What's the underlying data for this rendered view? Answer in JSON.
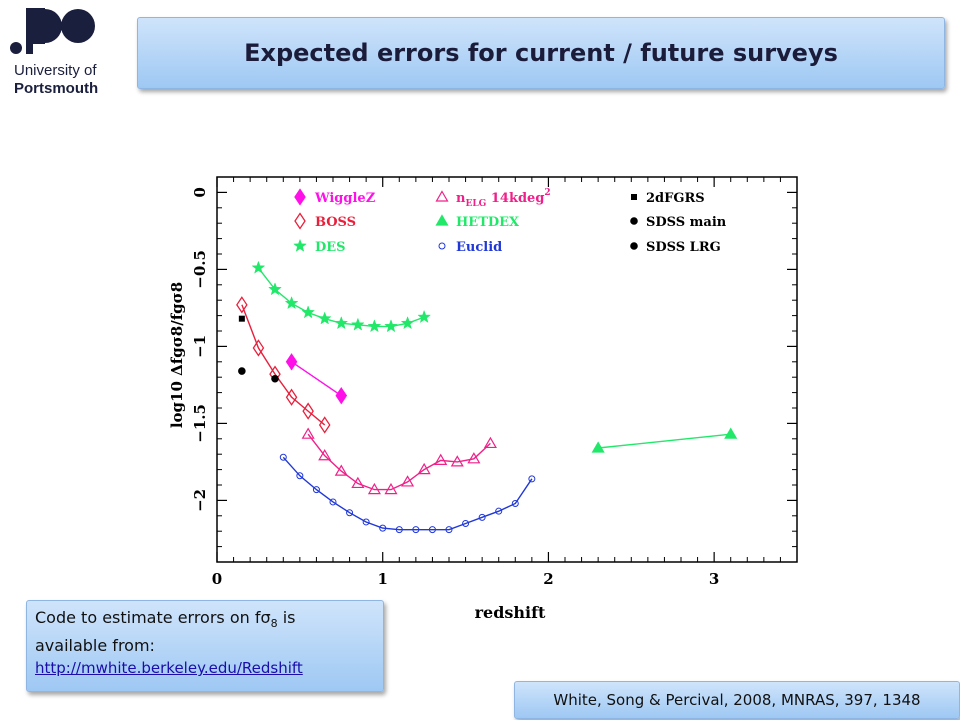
{
  "header": {
    "title": "Expected errors for current / future surveys",
    "logo_line1": "University of",
    "logo_line2": "Portsmouth"
  },
  "note": {
    "line1": "Code to estimate errors on fσ",
    "subscript": "8",
    "line1_end": " is",
    "line2": "available from:",
    "link": "http://mwhite.berkeley.edu/Redshift"
  },
  "citation": "White, Song & Percival, 2008, MNRAS, 397, 1348",
  "chart_data": {
    "type": "scatter",
    "xlabel": "redshift",
    "ylabel": "log10 Δfgσ8/fgσ8",
    "xlim": [
      0,
      3.5
    ],
    "ylim": [
      -2.4,
      0.1
    ],
    "xticks": [
      0,
      1,
      2,
      3
    ],
    "yticks": [
      0,
      -0.5,
      -1,
      -1.5,
      -2
    ],
    "xtick_labels": [
      "0",
      "1",
      "2",
      "3"
    ],
    "ytick_labels": [
      "0",
      "−0.5",
      "−1",
      "−1.5",
      "−2"
    ],
    "legend": {
      "placement": "top",
      "wigglez": "WiggleZ",
      "boss": "BOSS",
      "des": "DES",
      "nelg_pre": "n",
      "nelg_sub": "ELG",
      "nelg_post": " 14kdeg",
      "nelg_sup": "2",
      "hetdex": "HETDEX",
      "euclid": "Euclid",
      "twodf": "2dFGRS",
      "sdss_main": "SDSS main",
      "sdss_lrg": "SDSS LRG"
    },
    "series": [
      {
        "key": "wigglez",
        "name": "WiggleZ",
        "color": "#ff10e8",
        "marker": "diamond-filled",
        "line": true,
        "x": [
          0.45,
          0.75
        ],
        "y": [
          -1.1,
          -1.32
        ]
      },
      {
        "key": "boss",
        "name": "BOSS",
        "color": "#e8203c",
        "marker": "diamond-open",
        "line": true,
        "x": [
          0.15,
          0.25,
          0.35,
          0.45,
          0.55,
          0.65
        ],
        "y": [
          -0.73,
          -1.01,
          -1.18,
          -1.33,
          -1.42,
          -1.51
        ]
      },
      {
        "key": "des",
        "name": "DES",
        "color": "#22e86a",
        "marker": "star",
        "line": true,
        "x": [
          0.25,
          0.35,
          0.45,
          0.55,
          0.65,
          0.75,
          0.85,
          0.95,
          1.05,
          1.15,
          1.25
        ],
        "y": [
          -0.49,
          -0.63,
          -0.72,
          -0.78,
          -0.82,
          -0.85,
          -0.86,
          -0.87,
          -0.87,
          -0.85,
          -0.81
        ]
      },
      {
        "key": "nelg",
        "name": "nELG 14kdeg2",
        "color": "#f0208a",
        "marker": "triangle-open",
        "line": true,
        "x": [
          0.55,
          0.65,
          0.75,
          0.85,
          0.95,
          1.05,
          1.15,
          1.25,
          1.35,
          1.45,
          1.55,
          1.65
        ],
        "y": [
          -1.57,
          -1.71,
          -1.81,
          -1.89,
          -1.93,
          -1.93,
          -1.88,
          -1.8,
          -1.74,
          -1.75,
          -1.73,
          -1.63
        ]
      },
      {
        "key": "hetdex",
        "name": "HETDEX",
        "color": "#22e86a",
        "marker": "triangle-filled",
        "line": true,
        "x": [
          2.3,
          3.1
        ],
        "y": [
          -1.66,
          -1.57
        ]
      },
      {
        "key": "euclid",
        "name": "Euclid",
        "color": "#2038d8",
        "marker": "circle-open",
        "line": true,
        "x": [
          0.4,
          0.5,
          0.6,
          0.7,
          0.8,
          0.9,
          1.0,
          1.1,
          1.2,
          1.3,
          1.4,
          1.5,
          1.6,
          1.7,
          1.8,
          1.9
        ],
        "y": [
          -1.72,
          -1.84,
          -1.93,
          -2.01,
          -2.08,
          -2.14,
          -2.18,
          -2.19,
          -2.19,
          -2.19,
          -2.19,
          -2.15,
          -2.11,
          -2.07,
          -2.02,
          -1.86
        ]
      },
      {
        "key": "twodf",
        "name": "2dFGRS",
        "color": "#000000",
        "marker": "square-filled",
        "line": false,
        "x": [
          0.15
        ],
        "y": [
          -0.82
        ]
      },
      {
        "key": "sdss_main",
        "name": "SDSS main",
        "color": "#000000",
        "marker": "circle-filled",
        "line": false,
        "x": [
          0.15
        ],
        "y": [
          -1.16
        ]
      },
      {
        "key": "sdss_lrg",
        "name": "SDSS LRG",
        "color": "#000000",
        "marker": "circle-filled",
        "line": false,
        "x": [
          0.35
        ],
        "y": [
          -1.21
        ]
      }
    ]
  }
}
